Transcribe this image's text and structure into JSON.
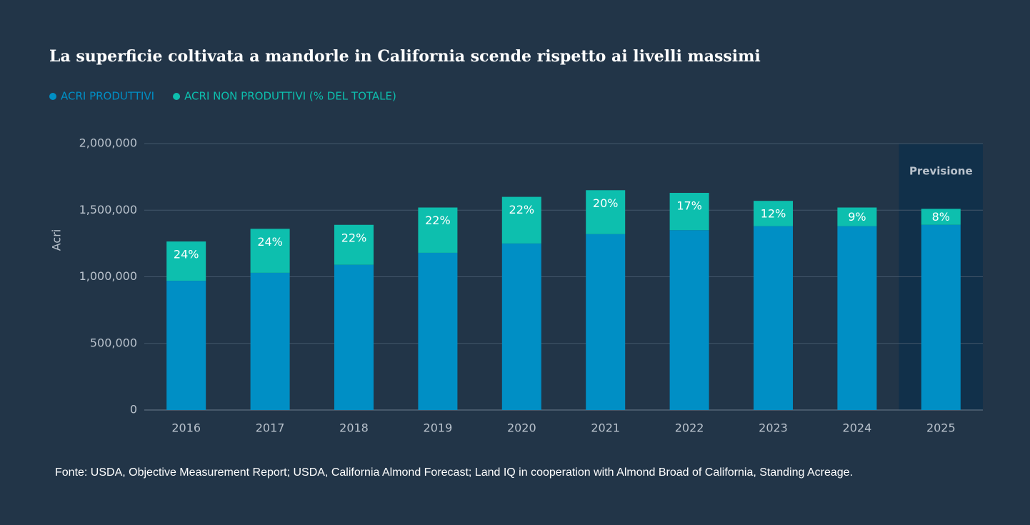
{
  "chart_data": {
    "type": "stacked_bar",
    "title": "La superficie coltivata a mandorle in California scende rispetto ai livelli massimi",
    "y_label": "Acri",
    "categories": [
      "2016",
      "2017",
      "2018",
      "2019",
      "2020",
      "2021",
      "2022",
      "2023",
      "2024",
      "2025"
    ],
    "series": [
      {
        "name": "ACRI PRODUTTIVI",
        "color": "#008fc5",
        "values": [
          970000,
          1030000,
          1090000,
          1180000,
          1250000,
          1320000,
          1350000,
          1380000,
          1380000,
          1390000
        ]
      },
      {
        "name": "ACRI NON PRODUTTIVI (% DEL TOTALE)",
        "color": "#0dbfae",
        "values": [
          295000,
          330000,
          300000,
          340000,
          350000,
          330000,
          280000,
          190000,
          140000,
          120000
        ],
        "share_labels": [
          "24%",
          "24%",
          "22%",
          "22%",
          "22%",
          "20%",
          "17%",
          "12%",
          "9%",
          "8%"
        ]
      }
    ],
    "ylim": [
      0,
      2000000
    ],
    "yticks": [
      0,
      {
        "value": 500000,
        "label": "500,000"
      },
      {
        "value": 1000000,
        "label": "1,000,000"
      },
      {
        "value": 1500000,
        "label": "1,500,000"
      },
      {
        "value": 2000000,
        "label": "2,000,000"
      }
    ],
    "grid": true,
    "forecast": {
      "label": "Previsione",
      "category": "2025"
    },
    "source": "Fonte: USDA, Objective Measurement Report; USDA, California Almond Forecast; Land IQ in cooperation with Almond Broad of California, Standing Acreage."
  }
}
